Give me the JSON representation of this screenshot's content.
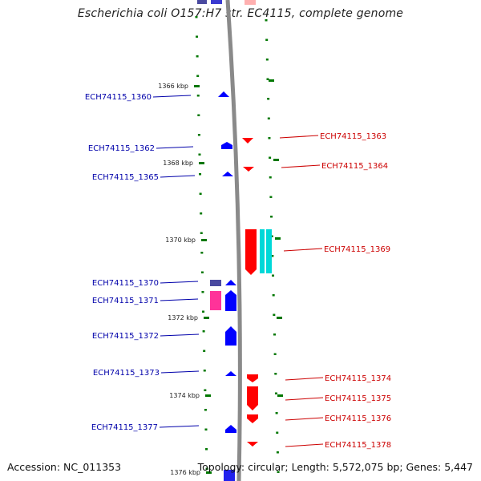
{
  "title": "Escherichia coli O157:H7 str. EC4115, complete genome",
  "accession": "Accession: NC_011353",
  "summary": "Topology: circular; Length: 5,572,075 bp; Genes: 5,447",
  "ruler": {
    "labels": [
      "1366 kbp",
      "1368 kbp",
      "1370 kbp",
      "1372 kbp",
      "1374 kbp",
      "1376 kbp"
    ]
  },
  "colors": {
    "forward_gene": "#0000ff",
    "reverse_gene": "#ff0000",
    "forward_label": "#0000aa",
    "reverse_label": "#cc0000",
    "backbone": "#888888",
    "tick": "#007700",
    "other_gene_magenta": "#ff3399",
    "other_gene_cyan": "#00d8d8",
    "other_gene_slate": "#4a4aa0"
  },
  "genes_left": [
    {
      "label": "ECH74115_1360"
    },
    {
      "label": "ECH74115_1362"
    },
    {
      "label": "ECH74115_1365"
    },
    {
      "label": "ECH74115_1370"
    },
    {
      "label": "ECH74115_1371"
    },
    {
      "label": "ECH74115_1372"
    },
    {
      "label": "ECH74115_1373"
    },
    {
      "label": "ECH74115_1377"
    }
  ],
  "genes_right": [
    {
      "label": "ECH74115_1363"
    },
    {
      "label": "ECH74115_1364"
    },
    {
      "label": "ECH74115_1369"
    },
    {
      "label": "ECH74115_1374"
    },
    {
      "label": "ECH74115_1375"
    },
    {
      "label": "ECH74115_1376"
    },
    {
      "label": "ECH74115_1378"
    }
  ]
}
